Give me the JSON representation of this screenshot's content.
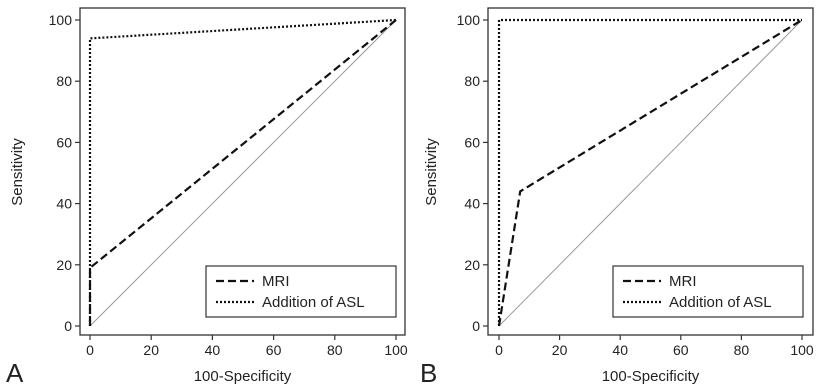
{
  "chart_data": [
    {
      "type": "line",
      "panel_label": "A",
      "xlabel": "100-Specificity",
      "ylabel": "Sensitivity",
      "xlim": [
        0,
        100
      ],
      "ylim": [
        0,
        100
      ],
      "xticks": [
        "0",
        "20",
        "40",
        "60",
        "80",
        "100"
      ],
      "yticks": [
        "0",
        "20",
        "40",
        "60",
        "80",
        "100"
      ],
      "grid": false,
      "legend_position": "bottom-right",
      "reference_line": {
        "x": [
          0,
          100
        ],
        "y": [
          0,
          100
        ]
      },
      "series": [
        {
          "name": "MRI",
          "style": "dashed",
          "x": [
            0,
            0,
            100
          ],
          "y": [
            0,
            19,
            100
          ]
        },
        {
          "name": "Addition of ASL",
          "style": "dotted",
          "x": [
            0,
            0,
            100
          ],
          "y": [
            0,
            94,
            100
          ]
        }
      ]
    },
    {
      "type": "line",
      "panel_label": "B",
      "xlabel": "100-Specificity",
      "ylabel": "Sensitivity",
      "xlim": [
        0,
        100
      ],
      "ylim": [
        0,
        100
      ],
      "xticks": [
        "0",
        "20",
        "40",
        "60",
        "80",
        "100"
      ],
      "yticks": [
        "0",
        "20",
        "40",
        "60",
        "80",
        "100"
      ],
      "grid": false,
      "legend_position": "bottom-right",
      "reference_line": {
        "x": [
          0,
          100
        ],
        "y": [
          0,
          100
        ]
      },
      "series": [
        {
          "name": "MRI",
          "style": "dashed",
          "x": [
            0,
            7,
            100
          ],
          "y": [
            0,
            44,
            100
          ]
        },
        {
          "name": "Addition of ASL",
          "style": "dotted",
          "x": [
            0,
            0,
            100
          ],
          "y": [
            0,
            100,
            100
          ]
        }
      ]
    }
  ],
  "colors": {
    "line": "#111111",
    "axis": "#333333",
    "reference": "#9a9a9a",
    "text": "#222222"
  }
}
